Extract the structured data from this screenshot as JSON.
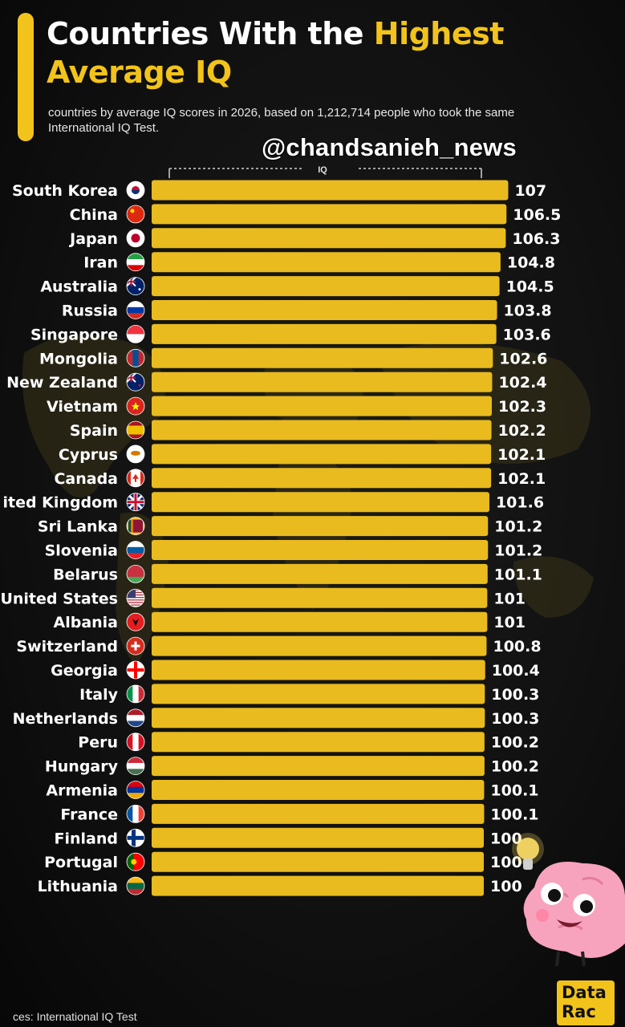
{
  "header": {
    "title_white": "Countries With the",
    "title_yellow1": "Highest",
    "title_yellow2": "Average IQ",
    "subtitle": "countries by average IQ scores in 2026, based on 1,212,714 people who took the same International IQ Test."
  },
  "watermark": "@chandsanieh_news",
  "logo": {
    "line1": "Data",
    "line2": "Rac"
  },
  "source": "ces: International IQ Test",
  "colors": {
    "bar": "#e9bb1e",
    "accent": "#f2c31a",
    "text": "#ffffff",
    "background": "#111111"
  },
  "chart_data": {
    "type": "bar",
    "orientation": "horizontal",
    "xlabel": "IQ",
    "categories": [
      "South Korea",
      "China",
      "Japan",
      "Iran",
      "Australia",
      "Russia",
      "Singapore",
      "Mongolia",
      "New Zealand",
      "Vietnam",
      "Spain",
      "Cyprus",
      "Canada",
      "ited Kingdom",
      "Sri Lanka",
      "Slovenia",
      "Belarus",
      "United States",
      "Albania",
      "Switzerland",
      "Georgia",
      "Italy",
      "Netherlands",
      "Peru",
      "Hungary",
      "Armenia",
      "France",
      "Finland",
      "Portugal",
      "Lithuania"
    ],
    "values": [
      107,
      106.5,
      106.3,
      104.8,
      104.5,
      103.8,
      103.6,
      102.6,
      102.4,
      102.3,
      102.2,
      102.1,
      102.1,
      101.6,
      101.2,
      101.2,
      101.1,
      101,
      101,
      100.8,
      100.4,
      100.3,
      100.3,
      100.2,
      100.2,
      100.1,
      100.1,
      100,
      100,
      100
    ],
    "value_labels": [
      "107",
      "106.5",
      "106.3",
      "104.8",
      "104.5",
      "103.8",
      "103.6",
      "102.6",
      "102.4",
      "102.3",
      "102.2",
      "102.1",
      "102.1",
      "101.6",
      "101.2",
      "101.2",
      "101.1",
      "101",
      "101",
      "100.8",
      "100.4",
      "100.3",
      "100.3",
      "100.2",
      "100.2",
      "100.1",
      "100.1",
      "100",
      "100",
      "100"
    ],
    "flags": [
      "south-korea-flag-icon",
      "china-flag-icon",
      "japan-flag-icon",
      "iran-flag-icon",
      "australia-flag-icon",
      "russia-flag-icon",
      "singapore-flag-icon",
      "mongolia-flag-icon",
      "new-zealand-flag-icon",
      "vietnam-flag-icon",
      "spain-flag-icon",
      "cyprus-flag-icon",
      "canada-flag-icon",
      "united-kingdom-flag-icon",
      "sri-lanka-flag-icon",
      "slovenia-flag-icon",
      "belarus-flag-icon",
      "united-states-flag-icon",
      "albania-flag-icon",
      "switzerland-flag-icon",
      "georgia-flag-icon",
      "italy-flag-icon",
      "netherlands-flag-icon",
      "peru-flag-icon",
      "hungary-flag-icon",
      "armenia-flag-icon",
      "france-flag-icon",
      "finland-flag-icon",
      "portugal-flag-icon",
      "lithuania-flag-icon"
    ],
    "grid": false,
    "legend": "none"
  }
}
